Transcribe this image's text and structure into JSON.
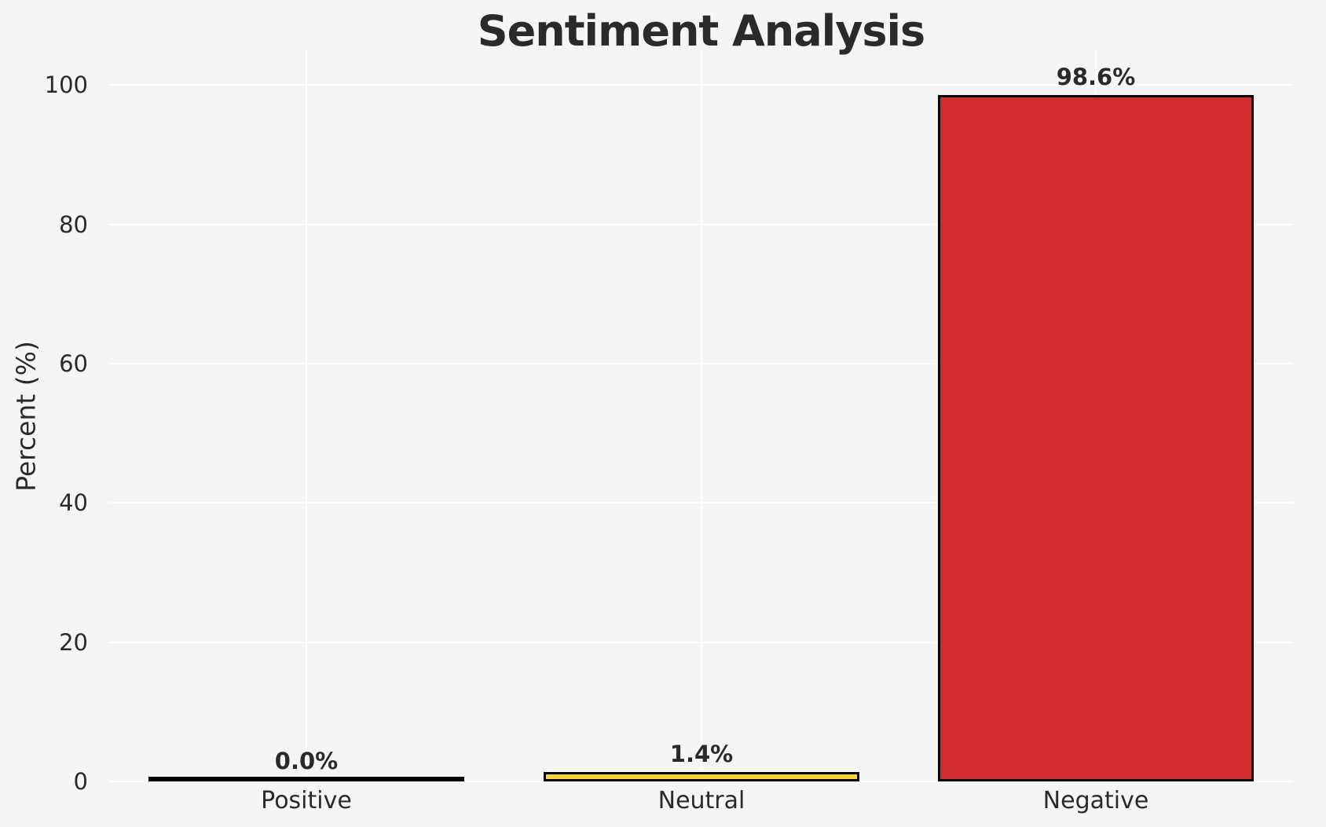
{
  "chart_data": {
    "type": "bar",
    "title": "Sentiment Analysis",
    "xlabel": "",
    "ylabel": "Percent (%)",
    "categories": [
      "Positive",
      "Neutral",
      "Negative"
    ],
    "values": [
      0.0,
      1.4,
      98.6
    ],
    "bar_labels": [
      "0.0%",
      "1.4%",
      "98.6%"
    ],
    "bar_colors": [
      null,
      "#fcd535",
      "#d32b2b"
    ],
    "bar_edge_color": "#000000",
    "y_ticks": [
      0,
      20,
      40,
      60,
      80,
      100
    ],
    "ylim": [
      0,
      104.9
    ],
    "grid": true,
    "gridline_color": "#ffffff",
    "legend": false,
    "background_color": "#f5f5f6",
    "text_color": "#2a2a2a"
  }
}
